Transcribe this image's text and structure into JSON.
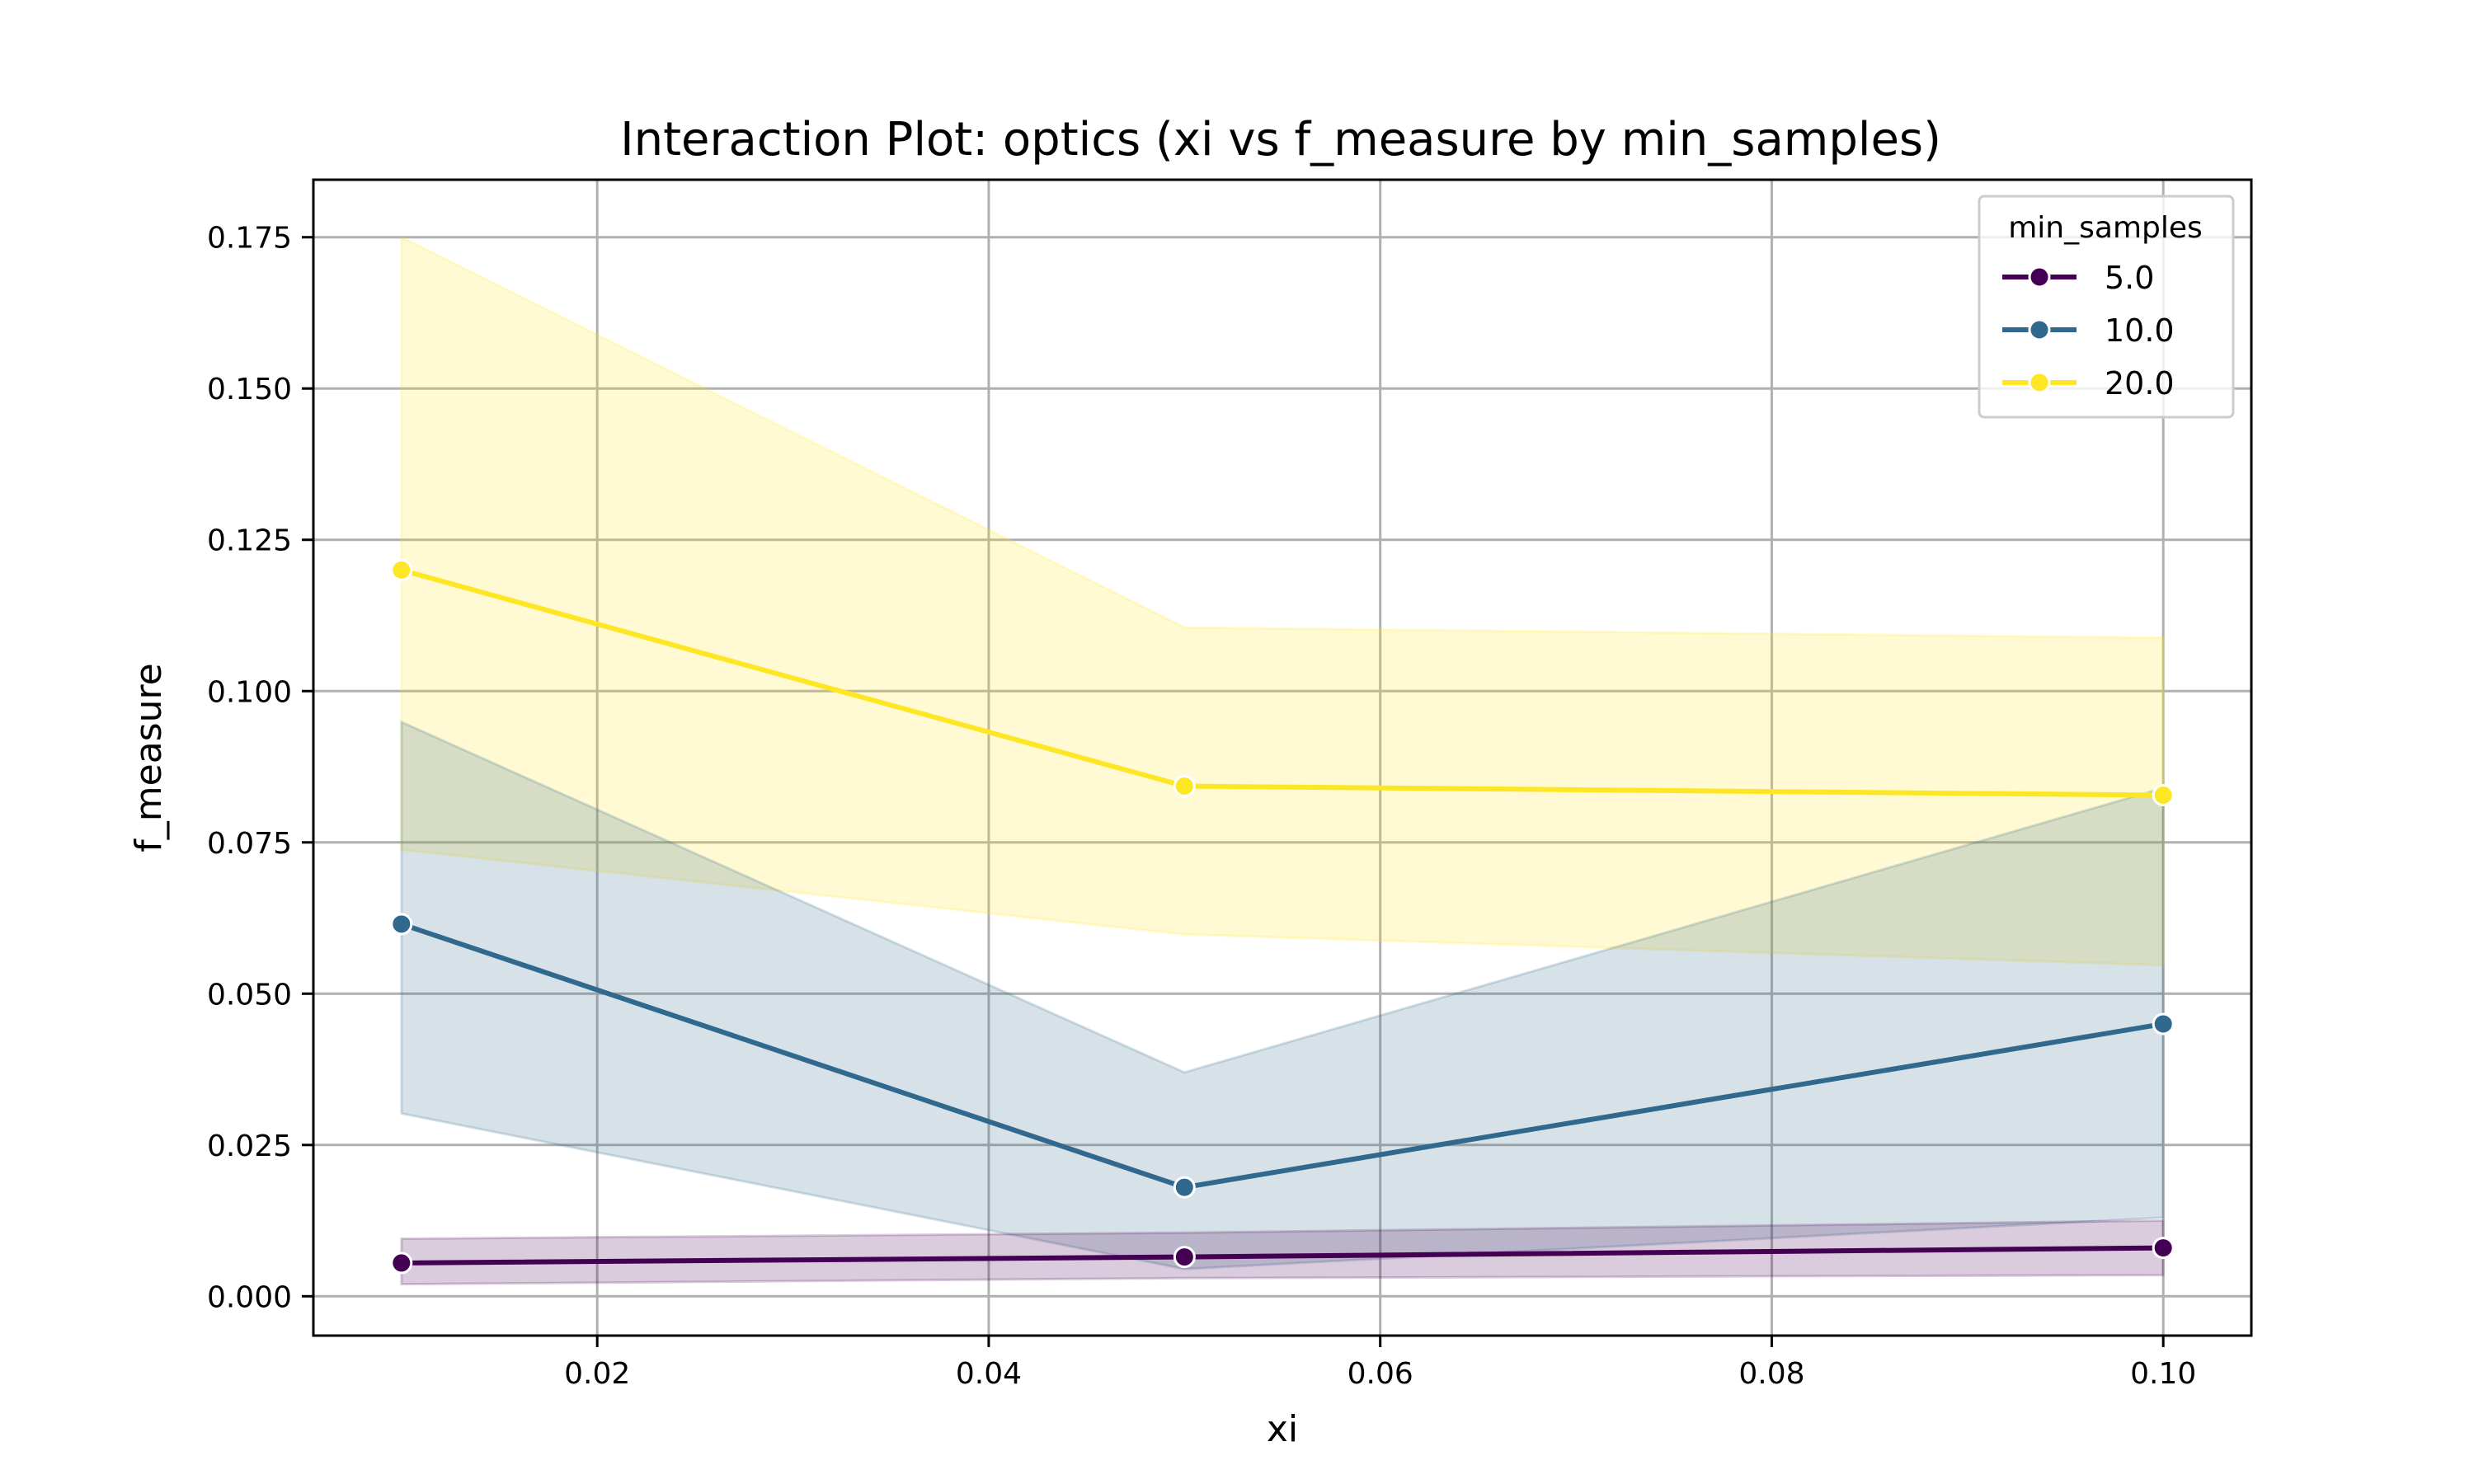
{
  "chart_data": {
    "type": "line",
    "title": "Interaction Plot: optics (xi vs f_measure by min_samples)",
    "xlabel": "xi",
    "ylabel": "f_measure",
    "xlim": [
      0.0055,
      0.1045
    ],
    "ylim": [
      -0.0065,
      0.1845
    ],
    "x_ticks": [
      0.02,
      0.04,
      0.06,
      0.08,
      0.1
    ],
    "x_tick_labels": [
      "0.02",
      "0.04",
      "0.06",
      "0.08",
      "0.10"
    ],
    "y_ticks": [
      0.0,
      0.025,
      0.05,
      0.075,
      0.1,
      0.125,
      0.15,
      0.175
    ],
    "y_tick_labels": [
      "0.000",
      "0.025",
      "0.050",
      "0.075",
      "0.100",
      "0.125",
      "0.150",
      "0.175"
    ],
    "grid": true,
    "legend": {
      "title": "min_samples",
      "placement": "top-right"
    },
    "x": [
      0.01,
      0.05,
      0.1
    ],
    "series": [
      {
        "name": "5.0",
        "color": "#440154",
        "values": [
          0.0055,
          0.0065,
          0.008
        ],
        "ci_lower": [
          0.002,
          0.003,
          0.0035
        ],
        "ci_upper": [
          0.0095,
          0.0105,
          0.0125
        ]
      },
      {
        "name": "10.0",
        "color": "#31688e",
        "values": [
          0.0615,
          0.018,
          0.045
        ],
        "ci_lower": [
          0.0302,
          0.0045,
          0.013
        ],
        "ci_upper": [
          0.0949,
          0.037,
          0.084
        ]
      },
      {
        "name": "20.0",
        "color": "#fde725",
        "values": [
          0.12,
          0.0843,
          0.0828
        ],
        "ci_lower": [
          0.0738,
          0.0598,
          0.0547
        ],
        "ci_upper": [
          0.175,
          0.1105,
          0.1088
        ]
      }
    ]
  }
}
